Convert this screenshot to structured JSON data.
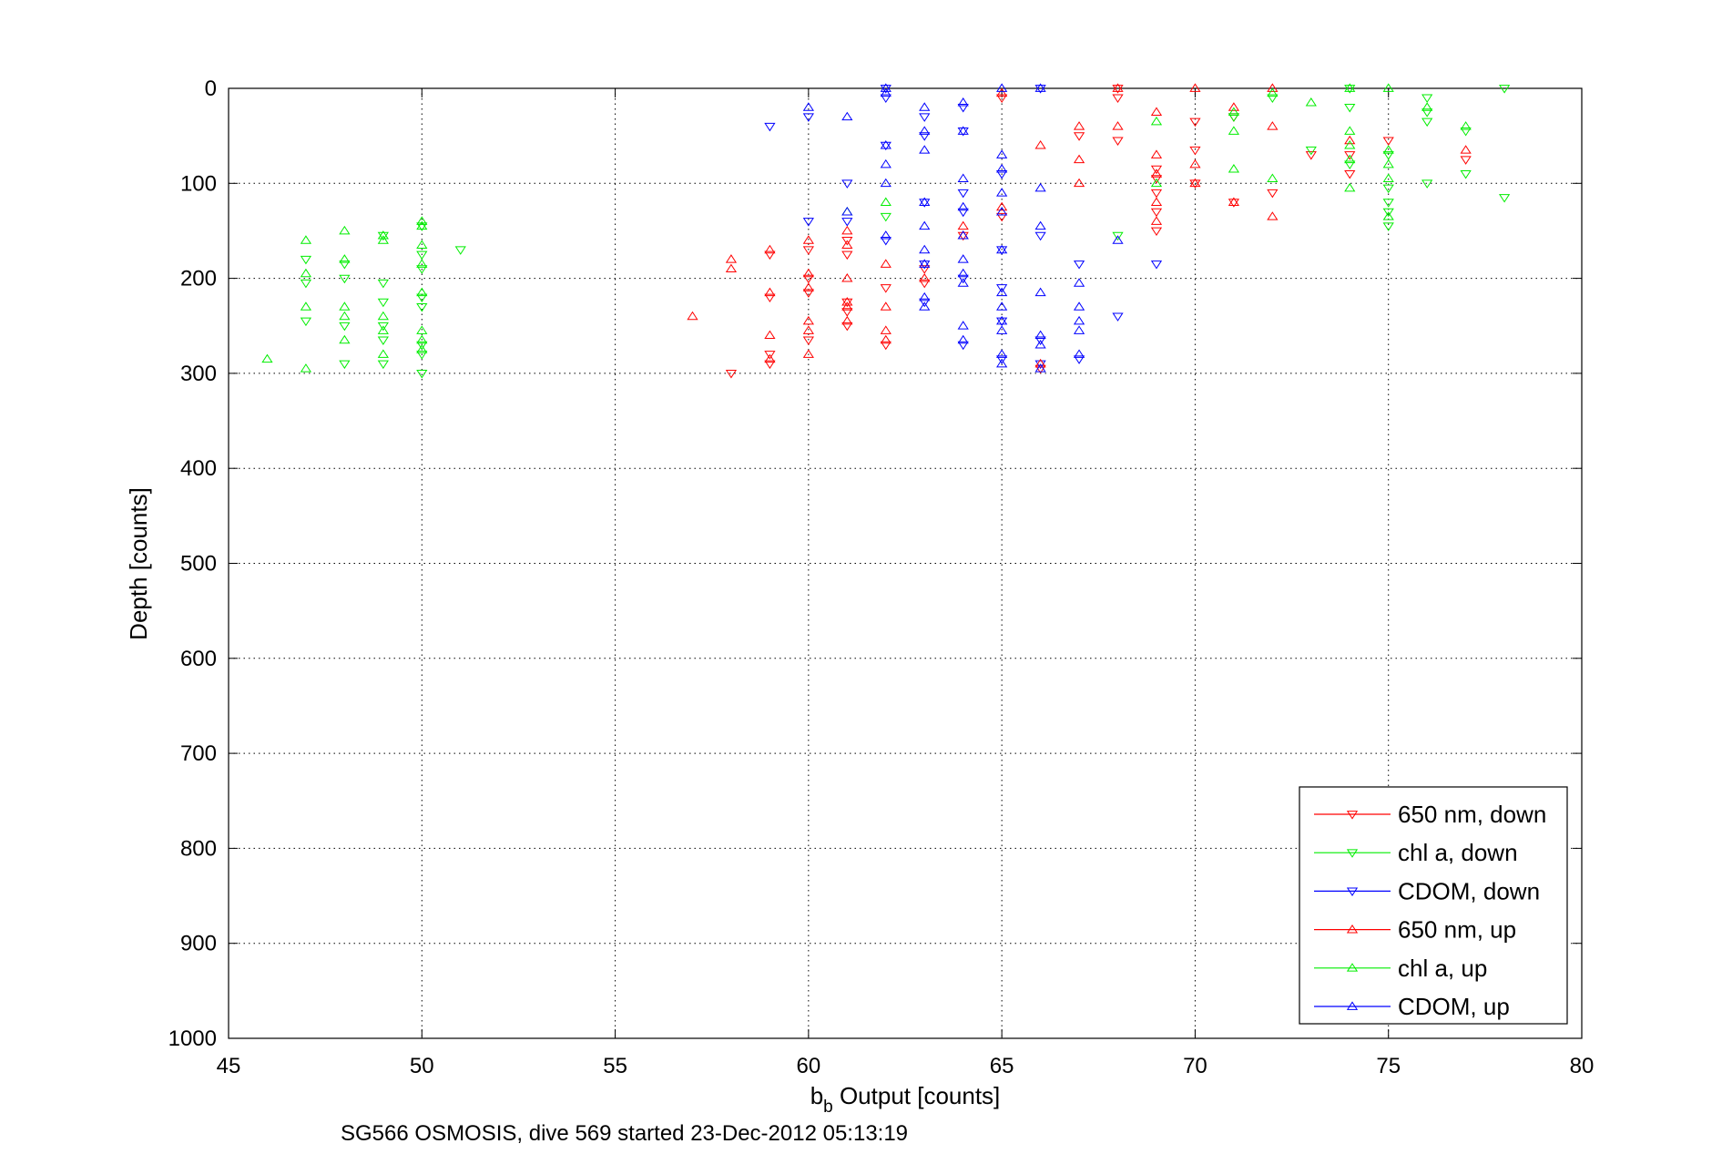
{
  "chart_data": {
    "type": "scatter",
    "xlabel_main": "b",
    "xlabel_sub": "b",
    "xlabel_rest": " Output [counts]",
    "ylabel": "Depth [counts]",
    "caption": "SG566 OSMOSIS, dive 569 started 23-Dec-2012 05:13:19",
    "xlim": [
      45,
      80
    ],
    "ylim": [
      0,
      1000
    ],
    "y_reversed": true,
    "grid": true,
    "grid_style": "dotted",
    "legend_position": "bottom-right",
    "x_ticks": [
      "45",
      "50",
      "55",
      "60",
      "65",
      "70",
      "75",
      "80"
    ],
    "y_ticks": [
      "0",
      "100",
      "200",
      "300",
      "400",
      "500",
      "600",
      "700",
      "800",
      "900",
      "1000"
    ],
    "series": [
      {
        "name": "650 nm, down",
        "color": "#ff0000",
        "marker": "triangle-down",
        "points": [
          [
            58,
            300
          ],
          [
            59,
            290
          ],
          [
            59,
            280
          ],
          [
            59,
            220
          ],
          [
            59,
            175
          ],
          [
            60,
            265
          ],
          [
            60,
            215
          ],
          [
            60,
            200
          ],
          [
            60,
            170
          ],
          [
            61,
            250
          ],
          [
            61,
            235
          ],
          [
            61,
            225
          ],
          [
            61,
            175
          ],
          [
            61,
            160
          ],
          [
            62,
            270
          ],
          [
            62,
            210
          ],
          [
            63,
            205
          ],
          [
            63,
            190
          ],
          [
            64,
            155
          ],
          [
            65,
            135
          ],
          [
            65,
            10
          ],
          [
            66,
            295
          ],
          [
            67,
            50
          ],
          [
            68,
            55
          ],
          [
            68,
            10
          ],
          [
            68,
            0
          ],
          [
            69,
            150
          ],
          [
            69,
            130
          ],
          [
            69,
            110
          ],
          [
            69,
            95
          ],
          [
            69,
            85
          ],
          [
            70,
            100
          ],
          [
            70,
            65
          ],
          [
            70,
            35
          ],
          [
            71,
            120
          ],
          [
            71,
            30
          ],
          [
            72,
            110
          ],
          [
            73,
            70
          ],
          [
            74,
            90
          ],
          [
            74,
            70
          ],
          [
            75,
            55
          ],
          [
            77,
            75
          ]
        ]
      },
      {
        "name": "chl a, down",
        "color": "#00ee00",
        "marker": "triangle-down",
        "points": [
          [
            47,
            245
          ],
          [
            47,
            205
          ],
          [
            47,
            180
          ],
          [
            48,
            290
          ],
          [
            48,
            250
          ],
          [
            48,
            200
          ],
          [
            48,
            185
          ],
          [
            49,
            290
          ],
          [
            49,
            265
          ],
          [
            49,
            250
          ],
          [
            49,
            225
          ],
          [
            49,
            205
          ],
          [
            49,
            155
          ],
          [
            50,
            300
          ],
          [
            50,
            280
          ],
          [
            50,
            270
          ],
          [
            50,
            230
          ],
          [
            50,
            220
          ],
          [
            50,
            190
          ],
          [
            50,
            175
          ],
          [
            50,
            145
          ],
          [
            51,
            170
          ],
          [
            62,
            135
          ],
          [
            68,
            155
          ],
          [
            71,
            30
          ],
          [
            72,
            10
          ],
          [
            73,
            65
          ],
          [
            74,
            20
          ],
          [
            74,
            0
          ],
          [
            74,
            80
          ],
          [
            75,
            145
          ],
          [
            75,
            130
          ],
          [
            75,
            120
          ],
          [
            75,
            105
          ],
          [
            75,
            70
          ],
          [
            76,
            35
          ],
          [
            76,
            25
          ],
          [
            76,
            10
          ],
          [
            76,
            100
          ],
          [
            77,
            90
          ],
          [
            77,
            45
          ],
          [
            78,
            115
          ],
          [
            78,
            0
          ]
        ]
      },
      {
        "name": "CDOM, down",
        "color": "#0000ff",
        "marker": "triangle-down",
        "points": [
          [
            59,
            40
          ],
          [
            60,
            30
          ],
          [
            60,
            140
          ],
          [
            61,
            100
          ],
          [
            61,
            140
          ],
          [
            62,
            0
          ],
          [
            62,
            10
          ],
          [
            62,
            60
          ],
          [
            62,
            160
          ],
          [
            63,
            30
          ],
          [
            63,
            50
          ],
          [
            63,
            120
          ],
          [
            63,
            185
          ],
          [
            63,
            225
          ],
          [
            64,
            20
          ],
          [
            64,
            45
          ],
          [
            64,
            110
          ],
          [
            64,
            130
          ],
          [
            64,
            200
          ],
          [
            64,
            270
          ],
          [
            65,
            90
          ],
          [
            65,
            170
          ],
          [
            65,
            210
          ],
          [
            65,
            245
          ],
          [
            65,
            285
          ],
          [
            66,
            0
          ],
          [
            66,
            155
          ],
          [
            66,
            265
          ],
          [
            66,
            290
          ],
          [
            67,
            185
          ],
          [
            67,
            285
          ],
          [
            68,
            240
          ],
          [
            69,
            185
          ]
        ]
      },
      {
        "name": "650 nm, up",
        "color": "#ff0000",
        "marker": "triangle-up",
        "points": [
          [
            57,
            240
          ],
          [
            58,
            180
          ],
          [
            58,
            190
          ],
          [
            59,
            170
          ],
          [
            59,
            215
          ],
          [
            59,
            260
          ],
          [
            59,
            285
          ],
          [
            60,
            160
          ],
          [
            60,
            195
          ],
          [
            60,
            210
          ],
          [
            60,
            245
          ],
          [
            60,
            255
          ],
          [
            60,
            280
          ],
          [
            61,
            150
          ],
          [
            61,
            165
          ],
          [
            61,
            200
          ],
          [
            61,
            225
          ],
          [
            61,
            230
          ],
          [
            61,
            245
          ],
          [
            62,
            185
          ],
          [
            62,
            230
          ],
          [
            62,
            255
          ],
          [
            62,
            265
          ],
          [
            63,
            200
          ],
          [
            64,
            145
          ],
          [
            64,
            155
          ],
          [
            65,
            125
          ],
          [
            65,
            5
          ],
          [
            66,
            60
          ],
          [
            66,
            290
          ],
          [
            67,
            40
          ],
          [
            67,
            75
          ],
          [
            67,
            100
          ],
          [
            68,
            40
          ],
          [
            68,
            0
          ],
          [
            69,
            25
          ],
          [
            69,
            70
          ],
          [
            69,
            90
          ],
          [
            69,
            120
          ],
          [
            69,
            140
          ],
          [
            70,
            0
          ],
          [
            70,
            80
          ],
          [
            70,
            100
          ],
          [
            71,
            20
          ],
          [
            71,
            120
          ],
          [
            72,
            0
          ],
          [
            72,
            40
          ],
          [
            72,
            135
          ],
          [
            74,
            55
          ],
          [
            77,
            65
          ]
        ]
      },
      {
        "name": "chl a, up",
        "color": "#00ee00",
        "marker": "triangle-up",
        "points": [
          [
            46,
            285
          ],
          [
            47,
            160
          ],
          [
            47,
            195
          ],
          [
            47,
            230
          ],
          [
            47,
            295
          ],
          [
            48,
            150
          ],
          [
            48,
            180
          ],
          [
            48,
            230
          ],
          [
            48,
            240
          ],
          [
            48,
            265
          ],
          [
            49,
            155
          ],
          [
            49,
            160
          ],
          [
            49,
            240
          ],
          [
            49,
            255
          ],
          [
            49,
            280
          ],
          [
            50,
            140
          ],
          [
            50,
            145
          ],
          [
            50,
            165
          ],
          [
            50,
            185
          ],
          [
            50,
            215
          ],
          [
            50,
            255
          ],
          [
            50,
            265
          ],
          [
            50,
            275
          ],
          [
            61,
            130
          ],
          [
            62,
            120
          ],
          [
            69,
            35
          ],
          [
            69,
            100
          ],
          [
            71,
            25
          ],
          [
            71,
            45
          ],
          [
            71,
            85
          ],
          [
            72,
            5
          ],
          [
            72,
            95
          ],
          [
            73,
            15
          ],
          [
            74,
            0
          ],
          [
            74,
            45
          ],
          [
            74,
            60
          ],
          [
            74,
            75
          ],
          [
            74,
            105
          ],
          [
            75,
            0
          ],
          [
            75,
            65
          ],
          [
            75,
            80
          ],
          [
            75,
            95
          ],
          [
            75,
            135
          ],
          [
            76,
            20
          ],
          [
            77,
            40
          ]
        ]
      },
      {
        "name": "CDOM, up",
        "color": "#0000ff",
        "marker": "triangle-up",
        "points": [
          [
            60,
            20
          ],
          [
            61,
            30
          ],
          [
            61,
            130
          ],
          [
            62,
            0
          ],
          [
            62,
            5
          ],
          [
            62,
            60
          ],
          [
            62,
            80
          ],
          [
            62,
            100
          ],
          [
            62,
            155
          ],
          [
            63,
            20
          ],
          [
            63,
            45
          ],
          [
            63,
            65
          ],
          [
            63,
            120
          ],
          [
            63,
            145
          ],
          [
            63,
            170
          ],
          [
            63,
            185
          ],
          [
            63,
            220
          ],
          [
            63,
            230
          ],
          [
            64,
            15
          ],
          [
            64,
            45
          ],
          [
            64,
            95
          ],
          [
            64,
            125
          ],
          [
            64,
            155
          ],
          [
            64,
            180
          ],
          [
            64,
            195
          ],
          [
            64,
            205
          ],
          [
            64,
            250
          ],
          [
            64,
            265
          ],
          [
            65,
            0
          ],
          [
            65,
            70
          ],
          [
            65,
            85
          ],
          [
            65,
            110
          ],
          [
            65,
            130
          ],
          [
            65,
            170
          ],
          [
            65,
            215
          ],
          [
            65,
            230
          ],
          [
            65,
            245
          ],
          [
            65,
            255
          ],
          [
            65,
            280
          ],
          [
            65,
            290
          ],
          [
            66,
            0
          ],
          [
            66,
            105
          ],
          [
            66,
            145
          ],
          [
            66,
            215
          ],
          [
            66,
            260
          ],
          [
            66,
            270
          ],
          [
            66,
            295
          ],
          [
            67,
            205
          ],
          [
            67,
            230
          ],
          [
            67,
            245
          ],
          [
            67,
            255
          ],
          [
            67,
            280
          ],
          [
            68,
            160
          ]
        ]
      }
    ]
  }
}
